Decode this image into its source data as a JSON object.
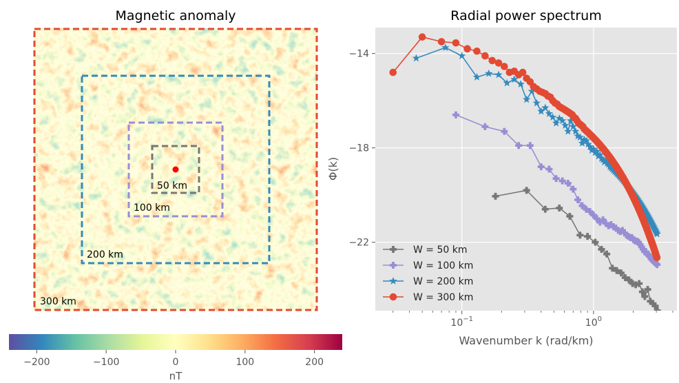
{
  "chart_data": [
    {
      "type": "heatmap",
      "title": "Magnetic anomaly",
      "window_labels": [
        "50 km",
        "100 km",
        "200 km",
        "300 km"
      ],
      "window_colors": [
        "#777777",
        "#988ed5",
        "#348abd",
        "#e24a33"
      ],
      "center_marker_color": "#ff0000",
      "colorbar": {
        "label": "nT",
        "ticks": [
          -200,
          -100,
          0,
          100,
          200
        ],
        "range": [
          -240,
          240
        ],
        "colormap": "Spectral_r"
      }
    },
    {
      "type": "line",
      "title": "Radial power spectrum",
      "xlabel": "Wavenumber k (rad/km)",
      "ylabel": "Φ(k)",
      "xscale": "log",
      "xlim": [
        0.022,
        4.3
      ],
      "ylim": [
        -24.9,
        -12.9
      ],
      "yticks": [
        -14,
        -18,
        -22
      ],
      "xticks": [
        0.1,
        1
      ],
      "grid": true,
      "legend": "lower-left",
      "series": [
        {
          "name": "W = 50 km",
          "color": "#777777",
          "marker": "plus",
          "x": [
            0.18,
            0.31,
            0.43,
            0.55,
            0.66,
            0.79,
            0.9,
            1.03,
            1.15,
            1.26,
            1.39,
            1.5,
            1.62,
            1.74,
            1.86,
            1.98,
            2.09,
            2.22,
            2.35,
            2.45,
            2.58,
            2.7,
            2.83,
            2.94,
            3.06
          ],
          "y": [
            -20.05,
            -19.8,
            -20.6,
            -20.55,
            -20.9,
            -21.7,
            -21.75,
            -22.0,
            -22.3,
            -22.5,
            -23.1,
            -23.2,
            -23.3,
            -23.5,
            -23.6,
            -23.75,
            -23.8,
            -23.75,
            -24.1,
            -24.3,
            -24.0,
            -24.5,
            -24.6,
            -24.7,
            -24.9
          ]
        },
        {
          "name": "W = 100 km",
          "color": "#988ed5",
          "marker": "plus",
          "x": [
            0.09,
            0.15,
            0.21,
            0.27,
            0.33,
            0.4,
            0.46,
            0.52,
            0.58,
            0.64,
            0.7,
            0.76,
            0.82,
            0.88,
            0.94,
            1.0,
            1.06,
            1.12,
            1.18,
            1.24,
            1.3,
            1.36,
            1.42,
            1.48,
            1.54,
            1.6,
            1.66,
            1.72,
            1.78,
            1.84,
            1.9,
            1.96,
            2.02,
            2.08,
            2.14,
            2.2,
            2.26,
            2.32,
            2.38,
            2.44,
            2.5,
            2.56,
            2.62,
            2.68,
            2.74,
            2.8,
            2.86,
            2.92,
            2.98,
            3.04
          ],
          "y": [
            -16.6,
            -17.1,
            -17.3,
            -17.9,
            -17.9,
            -18.8,
            -18.9,
            -19.3,
            -19.4,
            -19.5,
            -19.75,
            -20.2,
            -20.45,
            -20.6,
            -20.7,
            -20.85,
            -21.0,
            -21.15,
            -21.05,
            -21.2,
            -21.3,
            -21.25,
            -21.35,
            -21.4,
            -21.5,
            -21.55,
            -21.5,
            -21.6,
            -21.7,
            -21.75,
            -21.8,
            -21.8,
            -21.9,
            -21.95,
            -21.95,
            -22.0,
            -22.1,
            -22.2,
            -22.3,
            -22.4,
            -22.4,
            -22.5,
            -22.55,
            -22.6,
            -22.7,
            -22.75,
            -22.8,
            -22.85,
            -22.9,
            -22.95
          ]
        },
        {
          "name": "W = 200 km",
          "color": "#348abd",
          "marker": "star",
          "x": [
            0.045,
            0.075,
            0.1,
            0.13,
            0.16,
            0.19,
            0.22,
            0.25,
            0.28,
            0.31,
            0.34,
            0.37,
            0.4,
            0.43,
            0.46,
            0.49,
            0.52,
            0.55,
            0.58,
            0.61,
            0.64,
            0.67,
            0.7,
            0.73,
            0.76,
            0.79,
            0.82,
            0.85,
            0.88,
            0.91,
            0.94,
            0.97,
            1.0,
            1.03,
            1.06,
            1.09,
            1.12,
            1.15,
            1.18,
            1.21,
            1.24,
            1.27,
            1.3,
            1.33,
            1.36,
            1.39,
            1.42,
            1.45,
            1.48,
            1.51,
            1.54,
            1.57,
            1.6,
            1.63,
            1.66,
            1.69,
            1.72,
            1.75,
            1.78,
            1.81,
            1.84,
            1.87,
            1.9,
            1.93,
            1.96,
            1.99,
            2.02,
            2.05,
            2.08,
            2.11,
            2.14,
            2.17,
            2.2,
            2.23,
            2.26,
            2.29,
            2.32,
            2.35,
            2.38,
            2.41,
            2.44,
            2.47,
            2.5,
            2.53,
            2.56,
            2.59,
            2.62,
            2.65,
            2.68,
            2.71,
            2.74,
            2.77,
            2.8,
            2.83,
            2.86,
            2.89,
            2.92,
            2.95,
            2.98,
            3.01,
            3.04
          ],
          "y": [
            -14.2,
            -13.75,
            -14.1,
            -15.0,
            -14.85,
            -14.9,
            -15.25,
            -15.1,
            -15.3,
            -15.95,
            -15.6,
            -16.1,
            -16.45,
            -16.3,
            -16.55,
            -16.7,
            -16.95,
            -16.75,
            -16.85,
            -17.05,
            -17.3,
            -16.85,
            -17.1,
            -17.3,
            -17.5,
            -17.55,
            -17.8,
            -17.65,
            -17.7,
            -17.85,
            -17.95,
            -18.1,
            -18.05,
            -18.2,
            -18.15,
            -18.35,
            -18.3,
            -18.45,
            -18.5,
            -18.6,
            -18.55,
            -18.65,
            -18.7,
            -18.8,
            -18.85,
            -18.9,
            -18.95,
            -19.0,
            -19.05,
            -19.1,
            -19.15,
            -19.2,
            -19.25,
            -19.3,
            -19.35,
            -19.4,
            -19.45,
            -19.5,
            -19.55,
            -19.6,
            -19.65,
            -19.7,
            -19.75,
            -19.8,
            -19.85,
            -19.9,
            -19.95,
            -20.0,
            -20.05,
            -20.1,
            -20.15,
            -20.2,
            -20.25,
            -20.3,
            -20.35,
            -20.4,
            -20.45,
            -20.5,
            -20.55,
            -20.6,
            -20.65,
            -20.7,
            -20.75,
            -20.8,
            -20.85,
            -20.9,
            -20.95,
            -21.0,
            -21.05,
            -21.1,
            -21.15,
            -21.2,
            -21.25,
            -21.3,
            -21.35,
            -21.4,
            -21.45,
            -21.5,
            -21.55,
            -21.6,
            -21.65
          ]
        },
        {
          "name": "W = 300 km",
          "color": "#e24a33",
          "marker": "circle",
          "x": [
            0.03,
            0.05,
            0.07,
            0.09,
            0.11,
            0.13,
            0.15,
            0.17,
            0.19,
            0.21,
            0.23,
            0.25,
            0.27,
            0.29,
            0.31,
            0.33,
            0.35,
            0.37,
            0.39,
            0.41,
            0.43,
            0.45,
            0.47,
            0.49,
            0.51,
            0.53,
            0.55,
            0.57,
            0.59,
            0.61,
            0.63,
            0.65,
            0.67,
            0.69,
            0.71,
            0.73,
            0.75,
            0.77,
            0.79,
            0.81,
            0.83,
            0.85,
            0.87,
            0.89,
            0.91,
            0.93,
            0.95,
            0.97,
            0.99,
            1.01,
            1.03,
            1.05,
            1.07,
            1.09,
            1.11,
            1.13,
            1.15,
            1.17,
            1.19,
            1.21,
            1.23,
            1.25,
            1.27,
            1.29,
            1.31,
            1.33,
            1.35,
            1.37,
            1.39,
            1.41,
            1.43,
            1.45,
            1.47,
            1.49,
            1.51,
            1.53,
            1.55,
            1.57,
            1.59,
            1.61,
            1.63,
            1.65,
            1.67,
            1.69,
            1.71,
            1.73,
            1.75,
            1.77,
            1.79,
            1.81,
            1.83,
            1.85,
            1.87,
            1.89,
            1.91,
            1.93,
            1.95,
            1.97,
            1.99,
            2.01,
            2.03,
            2.05,
            2.07,
            2.09,
            2.11,
            2.13,
            2.15,
            2.17,
            2.19,
            2.21,
            2.23,
            2.25,
            2.27,
            2.29,
            2.31,
            2.33,
            2.35,
            2.37,
            2.39,
            2.41,
            2.43,
            2.45,
            2.47,
            2.49,
            2.51,
            2.53,
            2.55,
            2.57,
            2.59,
            2.61,
            2.63,
            2.65,
            2.67,
            2.69,
            2.71,
            2.73,
            2.75,
            2.77,
            2.79,
            2.81,
            2.83,
            2.85,
            2.87,
            2.89,
            2.91,
            2.93,
            2.95,
            2.97,
            2.99,
            3.01,
            3.03
          ],
          "y": [
            -14.8,
            -13.3,
            -13.5,
            -13.55,
            -13.8,
            -13.9,
            -14.1,
            -14.3,
            -14.4,
            -14.55,
            -14.8,
            -14.75,
            -14.9,
            -14.8,
            -15.05,
            -15.2,
            -15.4,
            -15.5,
            -15.6,
            -15.65,
            -15.7,
            -15.8,
            -15.85,
            -16.0,
            -16.1,
            -16.15,
            -16.25,
            -16.3,
            -16.35,
            -16.4,
            -16.45,
            -16.5,
            -16.55,
            -16.6,
            -16.7,
            -16.75,
            -16.85,
            -16.95,
            -17.0,
            -17.05,
            -17.1,
            -17.2,
            -17.25,
            -17.3,
            -17.35,
            -17.4,
            -17.45,
            -17.5,
            -17.55,
            -17.6,
            -17.65,
            -17.7,
            -17.75,
            -17.8,
            -17.85,
            -17.9,
            -17.95,
            -18.0,
            -18.05,
            -18.1,
            -18.15,
            -18.2,
            -18.25,
            -18.3,
            -18.35,
            -18.4,
            -18.45,
            -18.5,
            -18.55,
            -18.6,
            -18.65,
            -18.7,
            -18.75,
            -18.8,
            -18.85,
            -18.9,
            -18.95,
            -19.0,
            -19.05,
            -19.1,
            -19.15,
            -19.2,
            -19.25,
            -19.3,
            -19.35,
            -19.4,
            -19.45,
            -19.5,
            -19.55,
            -19.6,
            -19.65,
            -19.7,
            -19.75,
            -19.8,
            -19.85,
            -19.9,
            -19.95,
            -20.0,
            -20.05,
            -20.1,
            -20.15,
            -20.2,
            -20.25,
            -20.3,
            -20.35,
            -20.4,
            -20.45,
            -20.5,
            -20.55,
            -20.6,
            -20.65,
            -20.7,
            -20.75,
            -20.8,
            -20.85,
            -20.9,
            -20.95,
            -21.0,
            -21.05,
            -21.1,
            -21.15,
            -21.2,
            -21.25,
            -21.3,
            -21.35,
            -21.4,
            -21.45,
            -21.5,
            -21.55,
            -21.6,
            -21.65,
            -21.7,
            -21.75,
            -21.8,
            -21.85,
            -21.9,
            -21.95,
            -22.0,
            -22.05,
            -22.1,
            -22.15,
            -22.2,
            -22.25,
            -22.3,
            -22.35,
            -22.4,
            -22.45,
            -22.5,
            -22.55,
            -22.6,
            -22.65
          ]
        }
      ]
    }
  ]
}
